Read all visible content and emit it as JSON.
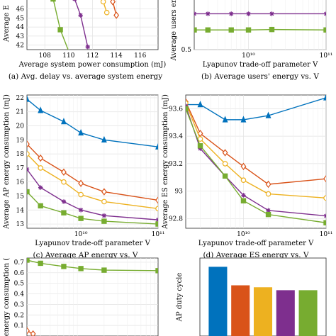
{
  "colors": {
    "blue": "#0072BD",
    "orange": "#D95319",
    "yellow": "#EDB120",
    "purple": "#7E2F8E",
    "green": "#77AC30"
  },
  "chart_data": [
    {
      "panel": "a",
      "type": "line",
      "caption": "(a) Avg. delay vs. average system energy",
      "xlabel": "Average system power consumption (mJ)",
      "ylabel": "Average E",
      "xlim": [
        106.5,
        117.5
      ],
      "ylim": [
        41.5,
        47.3
      ],
      "xticks": [
        "108",
        "110",
        "112",
        "114",
        "116"
      ],
      "yticks": [
        "42",
        "43",
        "44",
        "45",
        "46"
      ],
      "grid": true,
      "series": [
        {
          "color": "orange",
          "marker": "diamond",
          "x": [
            113.7,
            114.0
          ],
          "y": [
            46.8,
            45.3
          ]
        },
        {
          "color": "yellow",
          "marker": "circle",
          "x": [
            112.9,
            113.2
          ],
          "y": [
            46.8,
            45.6
          ]
        },
        {
          "color": "purple",
          "marker": "star",
          "x": [
            110.5,
            111.0,
            111.6
          ],
          "y": [
            47.1,
            45.3,
            41.8
          ]
        },
        {
          "color": "green",
          "marker": "square",
          "x": [
            108.7,
            109.3,
            110.1
          ],
          "y": [
            47.1,
            43.7,
            41.0
          ]
        }
      ]
    },
    {
      "panel": "b",
      "type": "line",
      "caption": "(b) Average users' energy vs. V",
      "xlabel": "Lyapunov trade-off parameter V",
      "ylabel": "Average users energ",
      "xscale": "log",
      "xlim": [
        2000000000.0,
        100000000000.0
      ],
      "ylim": [
        0.5,
        1.7
      ],
      "xticks": [
        "10¹⁰",
        "10¹¹"
      ],
      "yticks": [
        "0.5"
      ],
      "grid": true,
      "series": [
        {
          "color": "purple",
          "marker": "star",
          "x": [
            2000000000.0,
            3000000000.0,
            6000000000.0,
            10000000000.0,
            20000000000.0,
            100000000000.0
          ],
          "y": [
            1.32,
            1.32,
            1.32,
            1.32,
            1.32,
            1.32
          ]
        },
        {
          "color": "green",
          "marker": "square",
          "x": [
            2000000000.0,
            3000000000.0,
            6000000000.0,
            10000000000.0,
            20000000000.0,
            100000000000.0
          ],
          "y": [
            0.95,
            0.95,
            0.95,
            0.95,
            0.96,
            0.95
          ]
        }
      ]
    },
    {
      "panel": "c",
      "type": "line",
      "caption": "(c) Average AP energy vs. V",
      "xlabel": "Lyapunov trade-off parameter V",
      "ylabel": "Average AP energy consumption (mJ)",
      "xscale": "log",
      "xlim": [
        2000000000.0,
        100000000000.0
      ],
      "ylim": [
        12.7,
        22.2
      ],
      "xticks": [
        "10¹⁰",
        "10¹¹"
      ],
      "yticks": [
        "13",
        "14",
        "15",
        "16",
        "17",
        "18",
        "19",
        "20",
        "21",
        "22"
      ],
      "grid": true,
      "series": [
        {
          "color": "blue",
          "marker": "triangle",
          "x": [
            2000000000.0,
            3000000000.0,
            6000000000.0,
            10000000000.0,
            20000000000.0,
            100000000000.0
          ],
          "y": [
            21.9,
            21.1,
            20.3,
            19.5,
            19.0,
            18.5
          ]
        },
        {
          "color": "orange",
          "marker": "diamond",
          "x": [
            2000000000.0,
            3000000000.0,
            6000000000.0,
            10000000000.0,
            20000000000.0,
            100000000000.0
          ],
          "y": [
            18.7,
            17.7,
            16.7,
            15.9,
            15.3,
            14.7
          ]
        },
        {
          "color": "yellow",
          "marker": "circle",
          "x": [
            2000000000.0,
            3000000000.0,
            6000000000.0,
            10000000000.0,
            20000000000.0,
            100000000000.0
          ],
          "y": [
            18.0,
            17.0,
            16.0,
            15.1,
            14.6,
            14.1
          ]
        },
        {
          "color": "purple",
          "marker": "star",
          "x": [
            2000000000.0,
            3000000000.0,
            6000000000.0,
            10000000000.0,
            20000000000.0,
            100000000000.0
          ],
          "y": [
            16.9,
            15.6,
            14.6,
            14.0,
            13.6,
            13.3
          ]
        },
        {
          "color": "green",
          "marker": "square",
          "x": [
            2000000000.0,
            3000000000.0,
            6000000000.0,
            10000000000.0,
            20000000000.0,
            100000000000.0
          ],
          "y": [
            15.3,
            14.3,
            13.8,
            13.4,
            13.2,
            13.0
          ]
        }
      ]
    },
    {
      "panel": "d",
      "type": "line",
      "caption": "(d) Average ES energy vs. V",
      "xlabel": "Lyapunov trade-off parameter V",
      "ylabel": "Average ES energy consumption (mJ)",
      "xscale": "log",
      "xlim": [
        2000000000.0,
        100000000000.0
      ],
      "ylim": [
        92.73,
        93.7
      ],
      "xticks": [
        "10¹⁰",
        "10¹¹"
      ],
      "yticks": [
        "92.8",
        "93",
        "93.2",
        "93.4",
        "93.6"
      ],
      "grid": true,
      "series": [
        {
          "color": "blue",
          "marker": "triangle",
          "x": [
            2000000000.0,
            3000000000.0,
            6000000000.0,
            10000000000.0,
            20000000000.0,
            100000000000.0
          ],
          "y": [
            93.63,
            93.63,
            93.52,
            93.52,
            93.55,
            93.68
          ]
        },
        {
          "color": "orange",
          "marker": "diamond",
          "x": [
            2000000000.0,
            3000000000.0,
            6000000000.0,
            10000000000.0,
            20000000000.0,
            100000000000.0
          ],
          "y": [
            93.65,
            93.42,
            93.28,
            93.18,
            93.05,
            93.09
          ]
        },
        {
          "color": "yellow",
          "marker": "circle",
          "x": [
            2000000000.0,
            3000000000.0,
            6000000000.0,
            10000000000.0,
            20000000000.0,
            100000000000.0
          ],
          "y": [
            93.64,
            93.38,
            93.2,
            93.08,
            92.98,
            92.95
          ]
        },
        {
          "color": "purple",
          "marker": "star",
          "x": [
            2000000000.0,
            3000000000.0,
            6000000000.0,
            10000000000.0,
            20000000000.0,
            100000000000.0
          ],
          "y": [
            93.62,
            93.31,
            93.11,
            92.97,
            92.86,
            92.82
          ]
        },
        {
          "color": "green",
          "marker": "square",
          "x": [
            2000000000.0,
            3000000000.0,
            6000000000.0,
            10000000000.0,
            20000000000.0,
            100000000000.0
          ],
          "y": [
            93.6,
            93.33,
            93.11,
            92.93,
            92.83,
            92.77
          ]
        }
      ]
    },
    {
      "panel": "e",
      "type": "line",
      "caption": "",
      "xlabel": "",
      "ylabel": "energy consumption (",
      "xscale": "log",
      "xlim": [
        2000000000.0,
        100000000000.0
      ],
      "ylim": [
        0.0,
        0.74
      ],
      "xticks": [],
      "yticks": [
        "0.1",
        "0.2",
        "0.3",
        "0.4",
        "0.5",
        "0.6",
        "0.7"
      ],
      "grid": true,
      "series": [
        {
          "color": "green",
          "marker": "square",
          "x": [
            2000000000.0,
            3000000000.0,
            6000000000.0,
            10000000000.0,
            20000000000.0,
            100000000000.0
          ],
          "y": [
            0.72,
            0.69,
            0.66,
            0.64,
            0.625,
            0.62
          ]
        },
        {
          "color": "orange",
          "marker": "diamond",
          "x": [
            2000000000.0,
            2400000000.0
          ],
          "y": [
            0.05,
            0.02
          ]
        }
      ]
    },
    {
      "panel": "f",
      "type": "bar",
      "caption": "",
      "ylabel": "AP duty cycle",
      "ylim": [
        0,
        0.8
      ],
      "values": [
        0.71,
        0.52,
        0.5,
        0.47,
        0.47
      ],
      "bar_colors": [
        "blue",
        "orange",
        "yellow",
        "purple",
        "green"
      ],
      "grid": true
    }
  ]
}
